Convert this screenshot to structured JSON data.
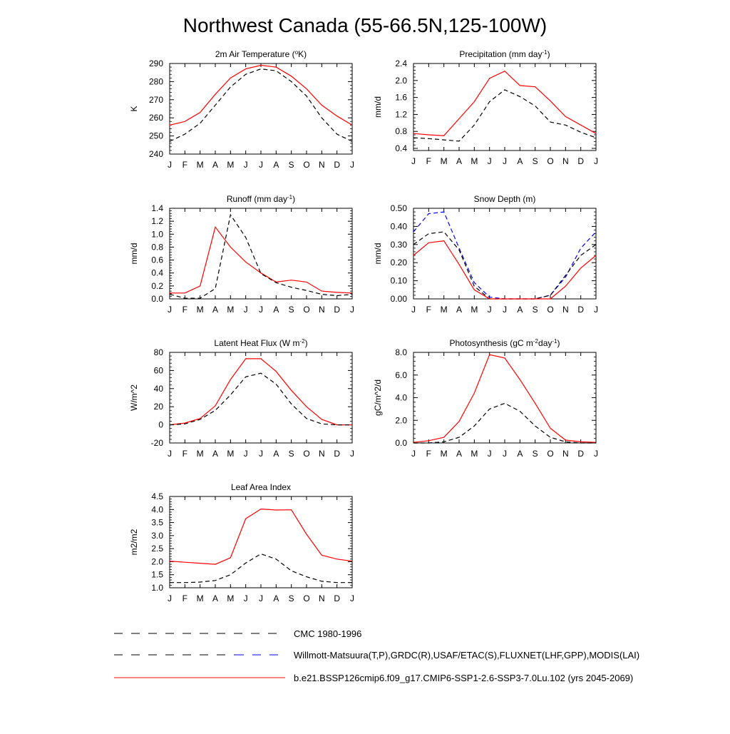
{
  "page_title": "Northwest Canada (55-66.5N,125-100W)",
  "months": [
    "J",
    "F",
    "M",
    "A",
    "M",
    "J",
    "J",
    "A",
    "S",
    "O",
    "N",
    "D",
    "J"
  ],
  "legend": [
    {
      "label": "CMC 1980-1996",
      "color": "#000000",
      "dash": "12 12",
      "dash2": null
    },
    {
      "label": "Willmott-Matsuura(T,P),GRDC(R),USAF/ETAC(S),FLUXNET(LHF,GPP),MODIS(LAI)",
      "color": "#000000",
      "dash": "12 12",
      "dash2": "#0000ff"
    },
    {
      "label": "b.e21.BSSP126cmip6.f09_g17.CMIP6-SSP1-2.6-SSP3-7.0Lu.102 (yrs 2045-2069)",
      "color": "#ff0000",
      "dash": "none",
      "dash2": null
    }
  ],
  "chart_data": [
    {
      "type": "line",
      "title": "2m Air Temperature (°K)",
      "ylabel": "K",
      "ylim": [
        240,
        290
      ],
      "yticks": [
        "240",
        "250",
        "260",
        "270",
        "280",
        "290"
      ],
      "yticks_values": [
        240,
        250,
        260,
        270,
        280,
        290
      ],
      "series": [
        {
          "color": "#ff0000",
          "dash": "none",
          "values": [
            256,
            258,
            263,
            273,
            282,
            287,
            289,
            288,
            283,
            276,
            267,
            261,
            256
          ]
        },
        {
          "color": "#000000",
          "dash": "6 4",
          "values": [
            247,
            251,
            257,
            267,
            277,
            284,
            287,
            286,
            280,
            272,
            260,
            251,
            247
          ]
        }
      ]
    },
    {
      "type": "line",
      "title": "Precipitation (mm day-1)",
      "ylabel": "mm/d",
      "ylim": [
        0.35,
        2.4
      ],
      "yticks": [
        "0.4",
        "0.8",
        "1.2",
        "1.6",
        "2.0",
        "2.4"
      ],
      "yticks_values": [
        0.4,
        0.8,
        1.2,
        1.6,
        2.0,
        2.4
      ],
      "series": [
        {
          "color": "#ff0000",
          "dash": "none",
          "values": [
            0.75,
            0.72,
            0.7,
            1.1,
            1.5,
            2.05,
            2.22,
            1.88,
            1.85,
            1.52,
            1.15,
            0.95,
            0.75
          ]
        },
        {
          "color": "#000000",
          "dash": "6 4",
          "values": [
            0.65,
            0.63,
            0.6,
            0.57,
            0.95,
            1.5,
            1.78,
            1.62,
            1.4,
            1.02,
            0.95,
            0.78,
            0.65
          ]
        }
      ]
    },
    {
      "type": "line",
      "title": "Runoff (mm day-1)",
      "ylabel": "mm/d",
      "ylim": [
        0,
        1.4
      ],
      "yticks": [
        "0.0",
        "0.2",
        "0.4",
        "0.6",
        "0.8",
        "1.0",
        "1.2",
        "1.4"
      ],
      "yticks_values": [
        0,
        0.2,
        0.4,
        0.6,
        0.8,
        1.0,
        1.2,
        1.4
      ],
      "series": [
        {
          "color": "#ff0000",
          "dash": "none",
          "values": [
            0.09,
            0.09,
            0.2,
            1.11,
            0.8,
            0.57,
            0.4,
            0.26,
            0.29,
            0.26,
            0.12,
            0.1,
            0.09
          ]
        },
        {
          "color": "#000000",
          "dash": "6 4",
          "values": [
            0.07,
            0.01,
            0.01,
            0.16,
            1.3,
            0.95,
            0.39,
            0.25,
            0.18,
            0.13,
            0.07,
            0.05,
            0.07
          ]
        }
      ]
    },
    {
      "type": "line",
      "title": "Snow Depth (m)",
      "ylabel": "mm/d",
      "ylim": [
        0,
        0.5
      ],
      "yticks": [
        "0.00",
        "0.10",
        "0.20",
        "0.30",
        "0.40",
        "0.50"
      ],
      "yticks_values": [
        0,
        0.1,
        0.2,
        0.3,
        0.4,
        0.5
      ],
      "series": [
        {
          "color": "#0000ff",
          "dash": "6 4",
          "values": [
            0.37,
            0.47,
            0.48,
            0.28,
            0.09,
            0.01,
            0.0,
            0.0,
            0.0,
            0.02,
            0.12,
            0.28,
            0.37
          ]
        },
        {
          "color": "#000000",
          "dash": "6 4",
          "values": [
            0.3,
            0.36,
            0.37,
            0.27,
            0.07,
            0.0,
            0.0,
            0.0,
            0.0,
            0.02,
            0.13,
            0.24,
            0.3
          ]
        },
        {
          "color": "#ff0000",
          "dash": "none",
          "values": [
            0.24,
            0.31,
            0.32,
            0.19,
            0.05,
            0.0,
            0.0,
            0.0,
            0.0,
            0.0,
            0.07,
            0.17,
            0.24
          ]
        }
      ]
    },
    {
      "type": "line",
      "title": "Latent Heat Flux (W m-2)",
      "ylabel": "W/m^2",
      "ylim": [
        -20,
        80
      ],
      "yticks": [
        "-20",
        "0",
        "20",
        "40",
        "60",
        "80"
      ],
      "yticks_values": [
        -20,
        0,
        20,
        40,
        60,
        80
      ],
      "series": [
        {
          "color": "#ff0000",
          "dash": "none",
          "values": [
            0,
            2,
            7,
            21,
            50,
            73,
            73,
            59,
            38,
            20,
            6,
            0,
            0
          ]
        },
        {
          "color": "#000000",
          "dash": "6 4",
          "values": [
            0,
            1,
            6,
            16,
            33,
            53,
            57,
            45,
            23,
            7,
            1,
            0,
            0
          ]
        }
      ]
    },
    {
      "type": "line",
      "title": "Photosynthesis (gC m-2day-1)",
      "ylabel": "gC/m^2/d",
      "ylim": [
        0,
        8.0
      ],
      "yticks": [
        "0.0",
        "2.0",
        "4.0",
        "6.0",
        "8.0"
      ],
      "yticks_values": [
        0,
        2,
        4,
        6,
        8
      ],
      "series": [
        {
          "color": "#ff0000",
          "dash": "none",
          "values": [
            0.05,
            0.2,
            0.5,
            1.9,
            4.4,
            7.8,
            7.5,
            5.6,
            3.5,
            1.3,
            0.25,
            0.1,
            0.05
          ]
        },
        {
          "color": "#000000",
          "dash": "6 4",
          "values": [
            0.0,
            0.0,
            0.1,
            0.5,
            1.5,
            3.0,
            3.5,
            2.8,
            1.5,
            0.5,
            0.1,
            0.0,
            0.0
          ]
        }
      ]
    },
    {
      "type": "line",
      "title": "Leaf Area Index",
      "ylabel": "m2/m2",
      "ylim": [
        1.0,
        4.5
      ],
      "yticks": [
        "1.0",
        "1.5",
        "2.0",
        "2.5",
        "3.0",
        "3.5",
        "4.0",
        "4.5"
      ],
      "yticks_values": [
        1.0,
        1.5,
        2.0,
        2.5,
        3.0,
        3.5,
        4.0,
        4.5
      ],
      "series": [
        {
          "color": "#ff0000",
          "dash": "none",
          "values": [
            2.02,
            1.98,
            1.94,
            1.9,
            2.15,
            3.65,
            4.02,
            3.98,
            3.99,
            3.05,
            2.25,
            2.1,
            2.02
          ]
        },
        {
          "color": "#000000",
          "dash": "6 4",
          "values": [
            1.2,
            1.2,
            1.22,
            1.28,
            1.5,
            1.95,
            2.3,
            2.1,
            1.65,
            1.42,
            1.25,
            1.2,
            1.2
          ]
        }
      ]
    }
  ]
}
